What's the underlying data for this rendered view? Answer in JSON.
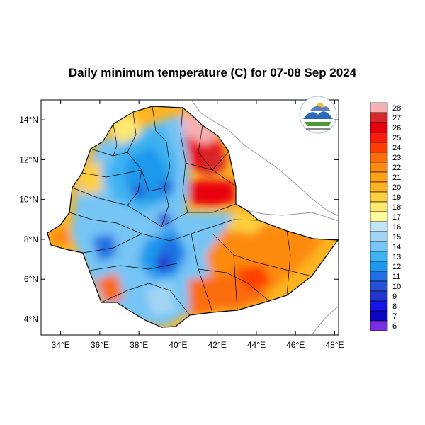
{
  "title": "Daily minimum temperature (C) for 07-08 Sep 2024",
  "map": {
    "lon_range": [
      33,
      48.2
    ],
    "lat_range": [
      3.2,
      15
    ],
    "x_ticks": [
      "34°E",
      "36°E",
      "38°E",
      "40°E",
      "42°E",
      "44°E",
      "46°E",
      "48°E"
    ],
    "x_tick_values": [
      34,
      36,
      38,
      40,
      42,
      44,
      46,
      48
    ],
    "y_ticks": [
      "14°N",
      "12°N",
      "10°N",
      "8°N",
      "6°N",
      "4°N"
    ],
    "y_tick_values": [
      14,
      12,
      10,
      8,
      6,
      4
    ],
    "logo": "ethiopian-meteorology-institute-logo"
  },
  "colorbar": {
    "levels": [
      "28",
      "27",
      "26",
      "25",
      "24",
      "23",
      "22",
      "21",
      "20",
      "19",
      "18",
      "17",
      "16",
      "15",
      "14",
      "13",
      "12",
      "11",
      "10",
      "9",
      "8",
      "7",
      "6"
    ],
    "colors": [
      "#f7b0b4",
      "#d7262c",
      "#e8000c",
      "#f81c0a",
      "#fe3d03",
      "#fb6d0a",
      "#fd8a10",
      "#fea219",
      "#fdb423",
      "#fdcf3d",
      "#fde870",
      "#fef89f",
      "#bfe4f7",
      "#a2d4f4",
      "#76c5f5",
      "#3cb2f1",
      "#1d98ec",
      "#1f71e3",
      "#2752d6",
      "#2237d2",
      "#1414e8",
      "#0b05c4",
      "#7a2ce6"
    ]
  }
}
